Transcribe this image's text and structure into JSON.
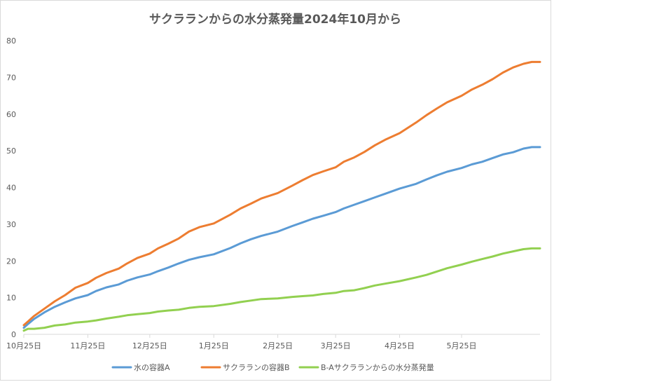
{
  "chart_data": {
    "type": "line",
    "title": "サクラランからの水分蒸発量2024年10月から",
    "xlabel": "",
    "ylabel": "",
    "ylim": [
      0,
      80
    ],
    "yticks": [
      0,
      10,
      20,
      30,
      40,
      50,
      60,
      70,
      80
    ],
    "x_tick_labels": [
      "10月25日",
      "11月25日",
      "12月25日",
      "1月25日",
      "2月25日",
      "3月25日",
      "4月25日",
      "5月25日"
    ],
    "x_tick_positions": [
      0,
      31,
      61,
      92,
      123,
      151,
      182,
      212
    ],
    "x_range": [
      0,
      250
    ],
    "grid": false,
    "legend_position": "bottom",
    "x": [
      0,
      2,
      5,
      10,
      15,
      20,
      25,
      31,
      35,
      40,
      46,
      50,
      55,
      61,
      65,
      70,
      75,
      80,
      85,
      92,
      100,
      105,
      110,
      115,
      123,
      130,
      135,
      140,
      145,
      151,
      155,
      160,
      165,
      170,
      175,
      182,
      190,
      195,
      200,
      205,
      212,
      217,
      222,
      227,
      232,
      237,
      242,
      246,
      250
    ],
    "series": [
      {
        "name": "水の容器A",
        "color": "#5b9bd5",
        "values": [
          1.8,
          2.8,
          4.2,
          6.0,
          7.5,
          8.7,
          9.8,
          10.7,
          11.8,
          12.8,
          13.6,
          14.6,
          15.5,
          16.3,
          17.2,
          18.2,
          19.3,
          20.3,
          21.0,
          21.8,
          23.5,
          24.8,
          25.9,
          26.8,
          28.0,
          29.5,
          30.5,
          31.5,
          32.3,
          33.3,
          34.3,
          35.3,
          36.3,
          37.3,
          38.3,
          39.7,
          41.0,
          42.2,
          43.3,
          44.3,
          45.3,
          46.3,
          47.0,
          48.0,
          49.0,
          49.6,
          50.6,
          51.0,
          51.0
        ]
      },
      {
        "name": "サクラランの容器B",
        "color": "#ed7d31",
        "values": [
          2.5,
          3.5,
          5.0,
          7.0,
          9.0,
          10.7,
          12.7,
          14.0,
          15.4,
          16.7,
          17.9,
          19.3,
          20.8,
          22.0,
          23.4,
          24.7,
          26.1,
          28.0,
          29.2,
          30.2,
          32.6,
          34.3,
          35.6,
          37.0,
          38.5,
          40.5,
          42.0,
          43.4,
          44.4,
          45.5,
          47.0,
          48.2,
          49.7,
          51.5,
          53.0,
          54.8,
          57.7,
          59.7,
          61.5,
          63.2,
          65.0,
          66.7,
          68.0,
          69.5,
          71.3,
          72.7,
          73.7,
          74.2,
          74.2
        ]
      },
      {
        "name": "B-Aサクラランからの水分蒸発量",
        "color": "#92d050",
        "values": [
          1.0,
          1.5,
          1.5,
          1.8,
          2.4,
          2.7,
          3.2,
          3.5,
          3.8,
          4.3,
          4.8,
          5.2,
          5.5,
          5.8,
          6.2,
          6.5,
          6.7,
          7.2,
          7.5,
          7.7,
          8.3,
          8.8,
          9.2,
          9.6,
          9.8,
          10.2,
          10.4,
          10.6,
          11.0,
          11.3,
          11.8,
          12.0,
          12.6,
          13.3,
          13.8,
          14.5,
          15.5,
          16.2,
          17.1,
          18.0,
          19.0,
          19.8,
          20.5,
          21.2,
          22.0,
          22.6,
          23.2,
          23.4,
          23.4
        ]
      }
    ]
  }
}
